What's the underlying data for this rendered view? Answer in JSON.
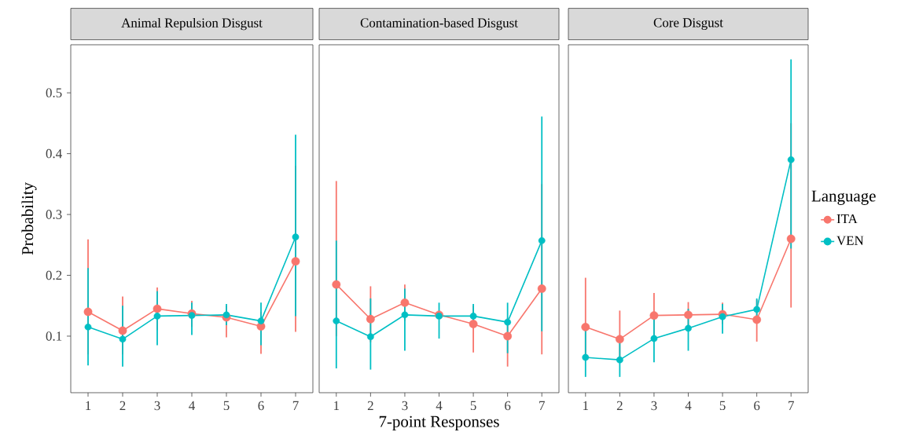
{
  "chart_data": [
    {
      "type": "line",
      "title": "Animal Repulsion Disgust",
      "ylabel": "Probability",
      "categories": [
        "1",
        "2",
        "3",
        "4",
        "5",
        "6",
        "7"
      ],
      "ylim": [
        0.007,
        0.579
      ],
      "yticks": [
        0.1,
        0.2,
        0.3,
        0.4,
        0.5
      ],
      "marker": "circle",
      "series": [
        {
          "color": "#f8766d",
          "values": [
            0.14,
            0.109,
            0.145,
            0.137,
            0.131,
            0.116,
            0.223
          ],
          "errors": [
            [
              0.07,
              0.259
            ],
            [
              0.07,
              0.165
            ],
            [
              0.11,
              0.18
            ],
            [
              0.115,
              0.158
            ],
            [
              0.098,
              0.15
            ],
            [
              0.071,
              0.14
            ],
            [
              0.107,
              0.38
            ]
          ]
        },
        {
          "color": "#00bfc4",
          "values": [
            0.115,
            0.095,
            0.133,
            0.134,
            0.135,
            0.125,
            0.263
          ],
          "errors": [
            [
              0.052,
              0.212
            ],
            [
              0.05,
              0.15
            ],
            [
              0.085,
              0.174
            ],
            [
              0.102,
              0.155
            ],
            [
              0.118,
              0.153
            ],
            [
              0.085,
              0.155
            ],
            [
              0.133,
              0.431
            ]
          ]
        }
      ]
    },
    {
      "type": "line",
      "title": "Contamination-based Disgust",
      "xlabel": "7-point Responses",
      "categories": [
        "1",
        "2",
        "3",
        "4",
        "5",
        "6",
        "7"
      ],
      "ylim": [
        0.007,
        0.579
      ],
      "yticks": [
        0.1,
        0.2,
        0.3,
        0.4,
        0.5
      ],
      "tick_labels": "x",
      "marker": "circle",
      "series": [
        {
          "color": "#f8766d",
          "values": [
            0.185,
            0.128,
            0.155,
            0.135,
            0.12,
            0.1,
            0.178
          ],
          "errors": [
            [
              0.1,
              0.355
            ],
            [
              0.09,
              0.182
            ],
            [
              0.125,
              0.185
            ],
            null,
            [
              0.073,
              0.15
            ],
            [
              0.05,
              0.13
            ],
            [
              0.07,
              0.35
            ]
          ]
        },
        {
          "color": "#00bfc4",
          "values": [
            0.125,
            0.099,
            0.135,
            0.133,
            0.133,
            0.123,
            0.257
          ],
          "errors": [
            [
              0.047,
              0.257
            ],
            [
              0.045,
              0.162
            ],
            [
              0.076,
              0.178
            ],
            [
              0.096,
              0.155
            ],
            [
              0.115,
              0.153
            ],
            [
              0.072,
              0.155
            ],
            [
              0.108,
              0.461
            ]
          ]
        }
      ]
    },
    {
      "type": "line",
      "title": "Core Disgust",
      "categories": [
        "1",
        "2",
        "3",
        "4",
        "5",
        "6",
        "7"
      ],
      "ylim": [
        0.007,
        0.579
      ],
      "yticks": [
        0.1,
        0.2,
        0.3,
        0.4,
        0.5
      ],
      "tick_labels": "x",
      "marker": "circle",
      "legend": "right",
      "legend_title": "Language",
      "series": [
        {
          "name": "ITA",
          "color": "#f8766d",
          "values": [
            0.115,
            0.095,
            0.134,
            0.135,
            0.136,
            0.127,
            0.26
          ],
          "errors": [
            [
              0.065,
              0.196
            ],
            [
              0.06,
              0.142
            ],
            [
              0.1,
              0.171
            ],
            [
              0.115,
              0.156
            ],
            [
              0.12,
              0.155
            ],
            [
              0.091,
              0.16
            ],
            [
              0.147,
              0.45
            ]
          ]
        },
        {
          "name": "VEN",
          "color": "#00bfc4",
          "values": [
            0.065,
            0.061,
            0.096,
            0.113,
            0.132,
            0.144,
            0.39
          ],
          "errors": [
            [
              0.033,
              0.119
            ],
            [
              0.033,
              0.09
            ],
            [
              0.057,
              0.135
            ],
            [
              0.076,
              0.145
            ],
            [
              0.104,
              0.153
            ],
            [
              0.13,
              0.162
            ],
            [
              0.244,
              0.555
            ]
          ]
        }
      ]
    }
  ]
}
